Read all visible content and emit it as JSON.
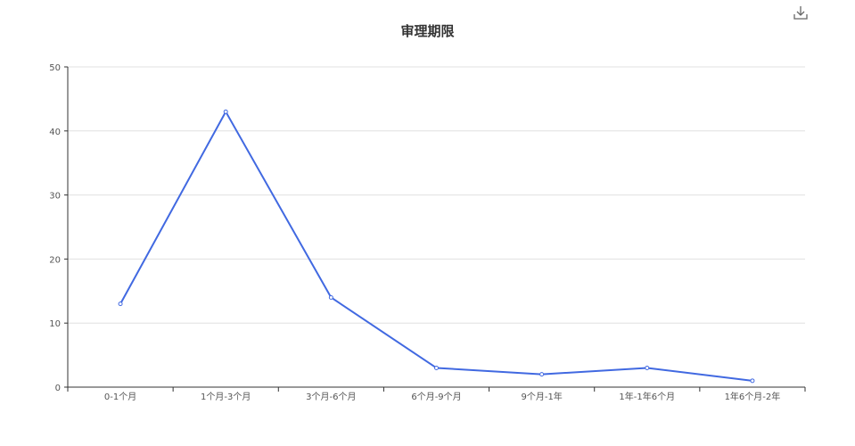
{
  "header": {
    "download_icon": "download-icon"
  },
  "chart_data": {
    "type": "line",
    "title": "审理期限",
    "xlabel": "",
    "ylabel": "",
    "categories": [
      "0-1个月",
      "1个月-3个月",
      "3个月-6个月",
      "6个月-9个月",
      "9个月-1年",
      "1年-1年6个月",
      "1年6个月-2年"
    ],
    "values": [
      13,
      43,
      14,
      3,
      2,
      3,
      1
    ],
    "ylim": [
      0,
      50
    ],
    "yticks": [
      0,
      10,
      20,
      30,
      40,
      50
    ],
    "grid": true,
    "legend": "none",
    "line_color": "#4169e1",
    "grid_color": "#e0e0e0",
    "axis_color": "#333333"
  }
}
